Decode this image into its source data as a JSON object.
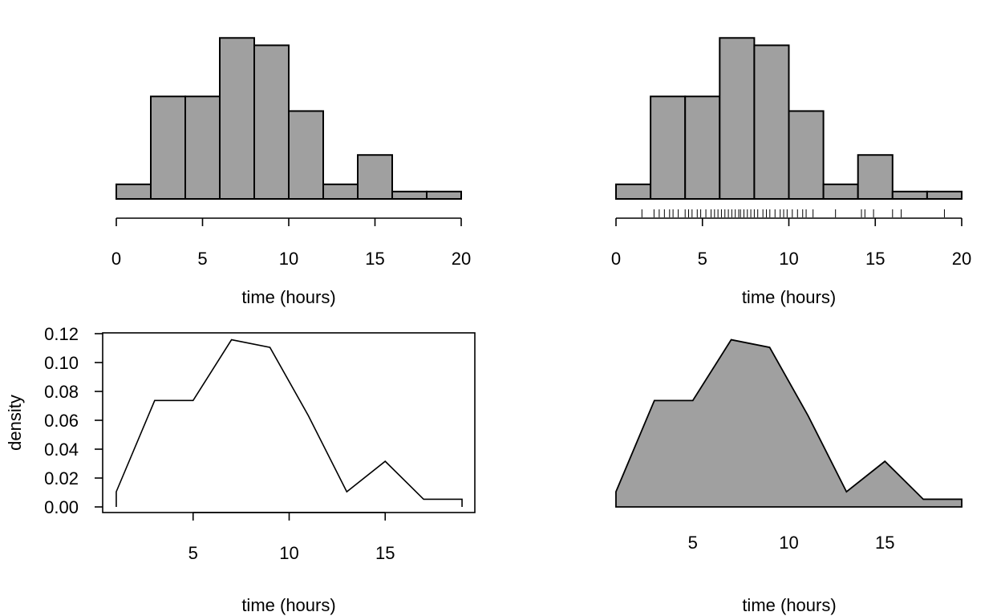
{
  "chart_data": [
    {
      "id": "histogram",
      "type": "bar",
      "subtype": "histogram",
      "bin_edges": [
        0,
        2,
        4,
        6,
        8,
        10,
        12,
        14,
        16,
        18,
        20
      ],
      "density": [
        0.0105,
        0.0737,
        0.0737,
        0.1158,
        0.1105,
        0.0632,
        0.0105,
        0.0316,
        0.0053,
        0.0053
      ],
      "xlim": [
        0,
        20
      ],
      "ylim": [
        0,
        0.12
      ],
      "xticks": [
        "0",
        "5",
        "10",
        "15",
        "20"
      ],
      "xlabel": "time (hours)",
      "ylabel": "",
      "y_axis_shown": false,
      "bar_color": "#a0a0a0"
    },
    {
      "id": "histogram-with-rug",
      "type": "bar",
      "subtype": "histogram",
      "bin_edges": [
        0,
        2,
        4,
        6,
        8,
        10,
        12,
        14,
        16,
        18,
        20
      ],
      "density": [
        0.0105,
        0.0737,
        0.0737,
        0.1158,
        0.1105,
        0.0632,
        0.0105,
        0.0316,
        0.0053,
        0.0053
      ],
      "rug": [
        1.5,
        2.2,
        2.5,
        2.8,
        3.1,
        3.3,
        3.6,
        4.0,
        4.2,
        4.4,
        4.7,
        4.9,
        5.2,
        5.5,
        5.7,
        5.9,
        6.1,
        6.3,
        6.5,
        6.7,
        6.9,
        7.1,
        7.2,
        7.4,
        7.6,
        7.8,
        8.0,
        8.2,
        8.5,
        8.7,
        8.9,
        9.2,
        9.5,
        9.7,
        9.9,
        10.2,
        10.5,
        10.8,
        11.0,
        11.4,
        12.7,
        14.2,
        14.4,
        14.9,
        16.0,
        16.5,
        19.0
      ],
      "xlim": [
        0,
        20
      ],
      "ylim": [
        0,
        0.12
      ],
      "xticks": [
        "0",
        "5",
        "10",
        "15",
        "20"
      ],
      "xlabel": "time (hours)",
      "ylabel": "",
      "y_axis_shown": false,
      "bar_color": "#a0a0a0"
    },
    {
      "id": "frequency-polygon",
      "type": "line",
      "x": [
        1,
        3,
        5,
        7,
        9,
        11,
        13,
        15,
        17,
        19
      ],
      "y": [
        0.0105,
        0.0737,
        0.0737,
        0.1158,
        0.1105,
        0.0632,
        0.0105,
        0.0316,
        0.0053,
        0.0053
      ],
      "xlim": [
        0,
        20
      ],
      "ylim": [
        0,
        0.12
      ],
      "xticks": [
        "5",
        "10",
        "15"
      ],
      "yticks": [
        "0.00",
        "0.02",
        "0.04",
        "0.06",
        "0.08",
        "0.10",
        "0.12"
      ],
      "xlabel": "time (hours)",
      "ylabel": "density",
      "frame": true,
      "line_color": "#000000"
    },
    {
      "id": "filled-frequency-polygon",
      "type": "area",
      "x": [
        1,
        3,
        5,
        7,
        9,
        11,
        13,
        15,
        17,
        19
      ],
      "y": [
        0.0105,
        0.0737,
        0.0737,
        0.1158,
        0.1105,
        0.0632,
        0.0105,
        0.0316,
        0.0053,
        0.0053
      ],
      "xlim": [
        0,
        20
      ],
      "ylim": [
        0,
        0.12
      ],
      "xticks": [
        "5",
        "10",
        "15"
      ],
      "xlabel": "time (hours)",
      "ylabel": "",
      "y_axis_shown": false,
      "fill_color": "#a0a0a0"
    }
  ]
}
